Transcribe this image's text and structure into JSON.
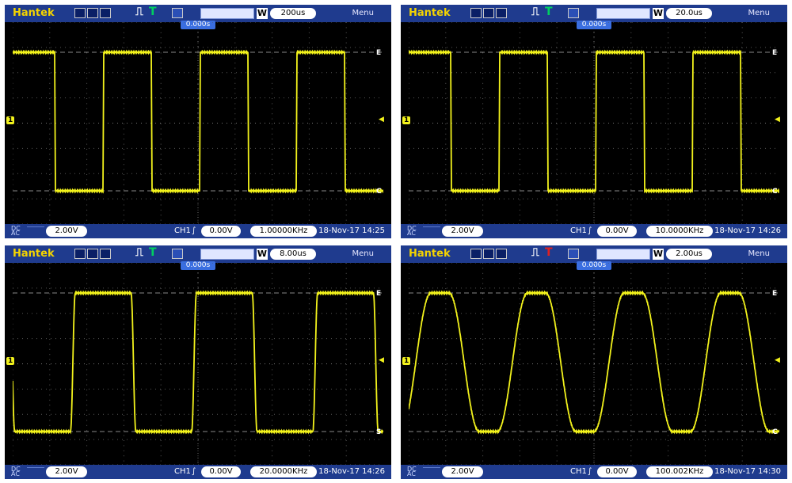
{
  "panels": [
    {
      "brand": "Hantek",
      "timebase": "200us",
      "menu": "Menu",
      "offset": "0.000s",
      "coupling_top": "DC",
      "coupling_bot": "AC",
      "ch_scale": "2.00V",
      "trigger_channel": "CH1",
      "trigger_level": "0.00V",
      "frequency": "1.00000KHz",
      "timestamp": "18-Nov-17 14:25",
      "trigger_state": "T",
      "trigger_color": "#00d060",
      "marker_low": "C"
    },
    {
      "brand": "Hantek",
      "timebase": "20.0us",
      "menu": "Menu",
      "offset": "0.000s",
      "coupling_top": "DC",
      "coupling_bot": "AC",
      "ch_scale": "2.00V",
      "trigger_channel": "CH1",
      "trigger_level": "0.00V",
      "frequency": "10.0000KHz",
      "timestamp": "18-Nov-17 14:26",
      "trigger_state": "T",
      "trigger_color": "#00d060",
      "marker_low": "C"
    },
    {
      "brand": "Hantek",
      "timebase": "8.00us",
      "menu": "Menu",
      "offset": "0.000s",
      "coupling_top": "DC",
      "coupling_bot": "AC",
      "ch_scale": "2.00V",
      "trigger_channel": "CH1",
      "trigger_level": "0.00V",
      "frequency": "20.0000KHz",
      "timestamp": "18-Nov-17 14:26",
      "trigger_state": "T",
      "trigger_color": "#00d060",
      "marker_low": "S"
    },
    {
      "brand": "Hantek",
      "timebase": "2.00us",
      "menu": "Menu",
      "offset": "0.000s",
      "coupling_top": "DC",
      "coupling_bot": "AC",
      "ch_scale": "2.00V",
      "trigger_channel": "CH1",
      "trigger_level": "0.00V",
      "frequency": "100.002KHz",
      "timestamp": "18-Nov-17 14:30",
      "trigger_state": "T",
      "trigger_color": "#e02020",
      "marker_low": "C"
    }
  ],
  "markers": {
    "top": "E",
    "ch": "1"
  },
  "trace_color": "#f2f21c"
}
